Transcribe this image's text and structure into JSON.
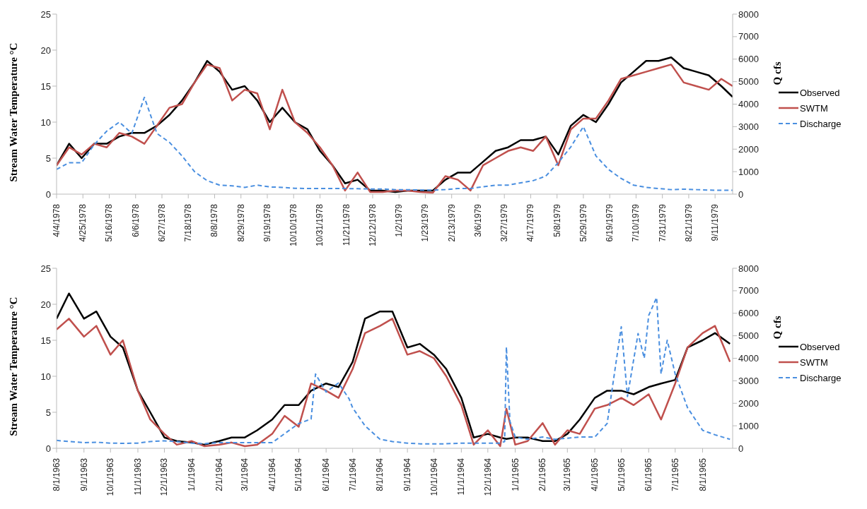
{
  "chart_data": [
    {
      "type": "line",
      "ylabel": "Stream Water Temperature °C",
      "y2label": "Q cfs",
      "legend": "right",
      "ylim": [
        0,
        25
      ],
      "yticks": [
        0,
        5,
        10,
        15,
        20,
        25
      ],
      "y2lim": [
        0,
        8000
      ],
      "y2ticks": [
        0,
        1000,
        2000,
        3000,
        4000,
        5000,
        6000,
        7000,
        8000
      ],
      "xlim": [
        "1978-04-04",
        "1979-09-25"
      ],
      "xticks": [
        {
          "value": "1978-04-04",
          "label": "4/4/1978"
        },
        {
          "value": "1978-04-25",
          "label": "4/25/1978"
        },
        {
          "value": "1978-05-16",
          "label": "5/16/1978"
        },
        {
          "value": "1978-06-06",
          "label": "6/6/1978"
        },
        {
          "value": "1978-06-27",
          "label": "6/27/1978"
        },
        {
          "value": "1978-07-18",
          "label": "7/18/1978"
        },
        {
          "value": "1978-08-08",
          "label": "8/8/1978"
        },
        {
          "value": "1978-08-29",
          "label": "8/29/1978"
        },
        {
          "value": "1978-09-19",
          "label": "9/19/1978"
        },
        {
          "value": "1978-10-10",
          "label": "10/10/1978"
        },
        {
          "value": "1978-10-31",
          "label": "10/31/1978"
        },
        {
          "value": "1978-11-21",
          "label": "11/21/1978"
        },
        {
          "value": "1978-12-12",
          "label": "12/12/1978"
        },
        {
          "value": "1979-01-02",
          "label": "1/2/1979"
        },
        {
          "value": "1979-01-23",
          "label": "1/23/1979"
        },
        {
          "value": "1979-02-13",
          "label": "2/13/1979"
        },
        {
          "value": "1979-03-06",
          "label": "3/6/1979"
        },
        {
          "value": "1979-03-27",
          "label": "3/27/1979"
        },
        {
          "value": "1979-04-17",
          "label": "4/17/1979"
        },
        {
          "value": "1979-05-08",
          "label": "5/8/1979"
        },
        {
          "value": "1979-05-29",
          "label": "5/29/1979"
        },
        {
          "value": "1979-06-19",
          "label": "6/19/1979"
        },
        {
          "value": "1979-07-10",
          "label": "7/10/1979"
        },
        {
          "value": "1979-07-31",
          "label": "7/31/1979"
        },
        {
          "value": "1979-08-21",
          "label": "8/21/1979"
        },
        {
          "value": "1979-09-11",
          "label": "9/11/1979"
        }
      ],
      "x": [
        "1978-04-04",
        "1978-04-14",
        "1978-04-24",
        "1978-05-04",
        "1978-05-14",
        "1978-05-24",
        "1978-06-03",
        "1978-06-13",
        "1978-06-23",
        "1978-07-03",
        "1978-07-13",
        "1978-07-23",
        "1978-08-02",
        "1978-08-12",
        "1978-08-22",
        "1978-09-01",
        "1978-09-11",
        "1978-09-21",
        "1978-10-01",
        "1978-10-11",
        "1978-10-21",
        "1978-10-31",
        "1978-11-10",
        "1978-11-20",
        "1978-11-30",
        "1978-12-10",
        "1978-12-20",
        "1978-12-30",
        "1979-01-09",
        "1979-01-19",
        "1979-01-29",
        "1979-02-08",
        "1979-02-18",
        "1979-02-28",
        "1979-03-10",
        "1979-03-20",
        "1979-03-30",
        "1979-04-09",
        "1979-04-19",
        "1979-04-29",
        "1979-05-09",
        "1979-05-19",
        "1979-05-29",
        "1979-06-08",
        "1979-06-18",
        "1979-06-28",
        "1979-07-08",
        "1979-07-18",
        "1979-07-28",
        "1979-08-07",
        "1979-08-17",
        "1979-08-27",
        "1979-09-06",
        "1979-09-16",
        "1979-09-25"
      ],
      "series": [
        {
          "name": "Observed",
          "color": "#000000",
          "values": [
            4,
            7,
            5,
            7,
            7,
            8,
            8.5,
            8.5,
            9.5,
            11,
            13,
            15.5,
            18.5,
            17,
            14.5,
            15,
            13,
            10,
            12,
            10,
            9,
            6,
            4,
            1.5,
            2,
            0.5,
            0.5,
            0.3,
            0.5,
            0.5,
            0.5,
            2,
            3,
            3,
            4.5,
            6,
            6.5,
            7.5,
            7.5,
            8,
            5.5,
            9.5,
            11,
            10,
            12.5,
            15.5,
            17,
            18.5,
            18.5,
            19,
            17.5,
            17,
            16.5,
            15,
            13.5
          ]
        },
        {
          "name": "SWTM",
          "color": "#c0504d",
          "values": [
            4,
            6.5,
            5.5,
            7,
            6.5,
            8.5,
            8,
            7,
            9.5,
            12,
            12.5,
            15.5,
            18,
            17.5,
            13,
            14.5,
            14,
            9,
            14.5,
            10,
            8.5,
            6.5,
            4,
            0.5,
            3,
            0.3,
            0.3,
            0.5,
            0.5,
            0.3,
            0.2,
            2.5,
            2,
            0.5,
            4,
            5,
            6,
            6.5,
            6,
            8,
            4,
            9,
            10.5,
            10.5,
            13,
            16,
            16.5,
            17,
            17.5,
            18,
            15.5,
            15,
            14.5,
            16,
            15
          ]
        },
        {
          "name": "Discharge",
          "color": "#4a8fe0",
          "axis": "y2",
          "line_style": "dashed",
          "values": [
            1100,
            1400,
            1400,
            2200,
            2800,
            3200,
            2700,
            4300,
            2700,
            2300,
            1700,
            1000,
            600,
            400,
            370,
            300,
            400,
            320,
            300,
            260,
            250,
            250,
            250,
            250,
            240,
            230,
            230,
            200,
            200,
            180,
            180,
            200,
            250,
            250,
            330,
            400,
            400,
            500,
            600,
            800,
            1400,
            2100,
            3000,
            1700,
            1100,
            700,
            400,
            300,
            250,
            200,
            220,
            200,
            180,
            170,
            170
          ]
        }
      ]
    },
    {
      "type": "line",
      "ylabel": "Stream Water Temperature °C",
      "y2label": "Q cfs",
      "legend": "right",
      "ylim": [
        0,
        25
      ],
      "yticks": [
        0,
        5,
        10,
        15,
        20,
        25
      ],
      "y2lim": [
        0,
        8000
      ],
      "y2ticks": [
        0,
        1000,
        2000,
        3000,
        4000,
        5000,
        6000,
        7000,
        8000
      ],
      "xlim": [
        "1963-08-01",
        "1965-09-04"
      ],
      "xticks": [
        {
          "value": "1963-08-01",
          "label": "8/1/1963"
        },
        {
          "value": "1963-09-01",
          "label": "9/1/1963"
        },
        {
          "value": "1963-10-01",
          "label": "10/1/1963"
        },
        {
          "value": "1963-11-01",
          "label": "11/1/1963"
        },
        {
          "value": "1963-12-01",
          "label": "12/1/1963"
        },
        {
          "value": "1964-01-01",
          "label": "1/1/1964"
        },
        {
          "value": "1964-02-01",
          "label": "2/1/1964"
        },
        {
          "value": "1964-03-01",
          "label": "3/1/1964"
        },
        {
          "value": "1964-04-01",
          "label": "4/1/1964"
        },
        {
          "value": "1964-05-01",
          "label": "5/1/1964"
        },
        {
          "value": "1964-06-01",
          "label": "6/1/1964"
        },
        {
          "value": "1964-07-01",
          "label": "7/1/1964"
        },
        {
          "value": "1964-08-01",
          "label": "8/1/1964"
        },
        {
          "value": "1964-09-01",
          "label": "9/1/1964"
        },
        {
          "value": "1964-10-01",
          "label": "10/1/1964"
        },
        {
          "value": "1964-11-01",
          "label": "11/1/1964"
        },
        {
          "value": "1964-12-01",
          "label": "12/1/1964"
        },
        {
          "value": "1965-01-01",
          "label": "1/1/1965"
        },
        {
          "value": "1965-02-01",
          "label": "2/1/1965"
        },
        {
          "value": "1965-03-01",
          "label": "3/1/1965"
        },
        {
          "value": "1965-04-01",
          "label": "4/1/1965"
        },
        {
          "value": "1965-05-01",
          "label": "5/1/1965"
        },
        {
          "value": "1965-06-01",
          "label": "6/1/1965"
        },
        {
          "value": "1965-07-01",
          "label": "7/1/1965"
        },
        {
          "value": "1965-08-01",
          "label": "8/1/1965"
        }
      ],
      "x": [
        "1963-08-01",
        "1963-08-15",
        "1963-09-01",
        "1963-09-15",
        "1963-10-01",
        "1963-10-15",
        "1963-11-01",
        "1963-11-15",
        "1963-12-01",
        "1963-12-15",
        "1964-01-01",
        "1964-01-15",
        "1964-02-01",
        "1964-02-15",
        "1964-03-01",
        "1964-03-15",
        "1964-04-01",
        "1964-04-15",
        "1964-05-01",
        "1964-05-15",
        "1964-06-01",
        "1964-06-15",
        "1964-07-01",
        "1964-07-15",
        "1964-08-01",
        "1964-08-15",
        "1964-09-01",
        "1964-09-15",
        "1964-10-01",
        "1964-10-15",
        "1964-11-01",
        "1964-11-15",
        "1964-12-01",
        "1964-12-15",
        "1964-12-22",
        "1965-01-01",
        "1965-01-15",
        "1965-02-01",
        "1965-02-15",
        "1965-03-01",
        "1965-03-15",
        "1965-04-01",
        "1965-04-15",
        "1965-05-01",
        "1965-05-15",
        "1965-06-01",
        "1965-06-15",
        "1965-07-01",
        "1965-07-15",
        "1965-08-01",
        "1965-08-15",
        "1965-09-01"
      ],
      "series": [
        {
          "name": "Observed",
          "color": "#000000",
          "values": [
            18,
            21.5,
            18,
            19,
            15.5,
            14,
            8,
            5,
            1.5,
            1,
            0.8,
            0.5,
            1,
            1.5,
            1.5,
            2.5,
            4,
            6,
            6,
            8,
            9,
            8.5,
            12,
            18,
            19,
            19,
            14,
            14.5,
            13,
            11,
            7,
            1.5,
            2,
            1.5,
            1.3,
            1.5,
            1.5,
            1,
            1,
            2,
            4,
            7,
            8,
            8,
            7.5,
            8.5,
            9,
            9.5,
            14,
            15,
            16,
            14.5
          ]
        },
        {
          "name": "SWTM",
          "color": "#c0504d",
          "values": [
            16.5,
            18,
            15.5,
            17,
            13,
            15,
            8,
            4,
            2,
            0.5,
            1,
            0.3,
            0.5,
            0.8,
            0.3,
            0.5,
            2,
            4.5,
            3,
            9,
            8,
            7,
            11,
            16,
            17,
            18,
            13,
            13.5,
            12.5,
            10,
            6,
            0.5,
            2.5,
            0.3,
            5.5,
            0.5,
            1,
            3.5,
            0.5,
            2.5,
            2,
            5.5,
            6,
            7,
            6,
            7.5,
            4,
            9,
            14,
            16,
            17,
            12
          ]
        },
        {
          "name": "Discharge",
          "color": "#4a8fe0",
          "axis": "y2",
          "line_style": "dashed",
          "x": [
            "1963-08-01",
            "1963-08-15",
            "1963-09-01",
            "1963-09-15",
            "1963-10-01",
            "1963-10-15",
            "1963-11-01",
            "1963-11-15",
            "1963-12-01",
            "1963-12-15",
            "1964-01-01",
            "1964-01-15",
            "1964-02-01",
            "1964-02-15",
            "1964-03-01",
            "1964-03-15",
            "1964-04-01",
            "1964-04-15",
            "1964-05-01",
            "1964-05-15",
            "1964-05-20",
            "1964-06-01",
            "1964-06-15",
            "1964-06-27",
            "1964-07-01",
            "1964-07-15",
            "1964-08-01",
            "1964-08-15",
            "1964-09-01",
            "1964-09-15",
            "1964-10-01",
            "1964-10-15",
            "1964-11-01",
            "1964-11-15",
            "1964-12-01",
            "1964-12-15",
            "1964-12-20",
            "1964-12-22",
            "1964-12-26",
            "1965-01-01",
            "1965-01-15",
            "1965-02-01",
            "1965-02-15",
            "1965-03-01",
            "1965-03-15",
            "1965-04-01",
            "1965-04-15",
            "1965-04-25",
            "1965-05-01",
            "1965-05-08",
            "1965-05-20",
            "1965-05-27",
            "1965-06-01",
            "1965-06-10",
            "1965-06-15",
            "1965-06-22",
            "1965-07-01",
            "1965-07-15",
            "1965-08-01",
            "1965-08-15",
            "1965-09-01"
          ],
          "values": [
            350,
            300,
            250,
            270,
            230,
            220,
            230,
            300,
            330,
            300,
            230,
            200,
            250,
            250,
            250,
            250,
            250,
            650,
            1100,
            1300,
            3300,
            2500,
            2900,
            2200,
            1800,
            1000,
            400,
            300,
            230,
            200,
            200,
            200,
            230,
            230,
            230,
            230,
            300,
            4500,
            1200,
            500,
            400,
            500,
            400,
            450,
            500,
            500,
            1100,
            3800,
            5400,
            2300,
            5100,
            4000,
            5900,
            6700,
            3300,
            4800,
            3300,
            1800,
            800,
            600,
            400
          ]
        }
      ]
    }
  ]
}
